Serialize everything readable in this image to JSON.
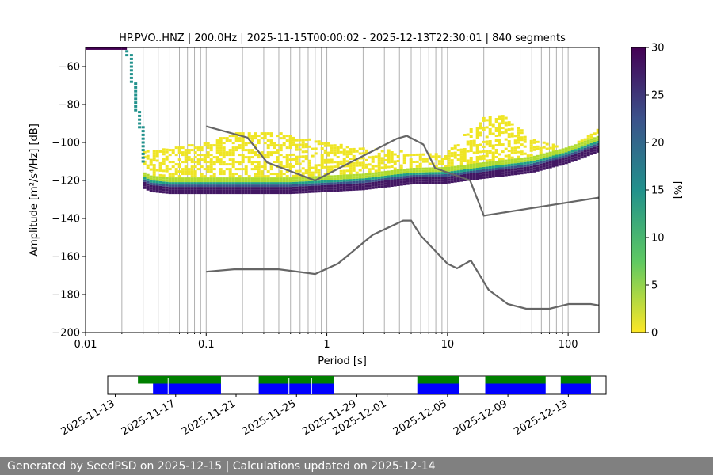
{
  "footer_text": "Generated by SeedPSD on 2025-12-15 | Calculations updated on 2025-12-14",
  "chart_data": [
    {
      "type": "heatmap",
      "title": "HP.PVO..HNZ | 200.0Hz | 2025-11-15T00:00:02 - 2025-12-13T22:30:01 | 840 segments",
      "xlabel": "Period [s]",
      "ylabel": "Amplitude [m²/s⁴/Hz] [dB]",
      "x_scale": "log",
      "xlim": [
        0.01,
        180
      ],
      "ylim": [
        -200,
        -50
      ],
      "x_ticks": [
        0.01,
        0.1,
        1,
        10,
        100
      ],
      "x_tick_labels": [
        "0.01",
        "0.1",
        "1",
        "10",
        "100"
      ],
      "y_ticks": [
        -200,
        -180,
        -160,
        -140,
        -120,
        -100,
        -80,
        -60
      ],
      "grid": "vertical lines at log ticks",
      "colorbar": {
        "label": "[%]",
        "range": [
          0,
          30
        ],
        "ticks": [
          0,
          5,
          10,
          15,
          20,
          25,
          30
        ],
        "colormap": "viridis_r"
      },
      "model_curves": {
        "color": "#666666",
        "high_noise_model": [
          [
            0.1,
            -91.5
          ],
          [
            0.22,
            -97.4
          ],
          [
            0.32,
            -110.5
          ],
          [
            0.8,
            -120
          ],
          [
            3.8,
            -98
          ],
          [
            4.6,
            -96.5
          ],
          [
            6.3,
            -101
          ],
          [
            7.9,
            -113.5
          ],
          [
            15.4,
            -120
          ],
          [
            20,
            -138.5
          ],
          [
            180,
            -129
          ]
        ],
        "low_noise_model": [
          [
            0.1,
            -168
          ],
          [
            0.17,
            -166.7
          ],
          [
            0.4,
            -166.7
          ],
          [
            0.8,
            -169.2
          ],
          [
            1.24,
            -163.7
          ],
          [
            2.4,
            -148.6
          ],
          [
            4.3,
            -141.1
          ],
          [
            5.0,
            -141.1
          ],
          [
            6.0,
            -149
          ],
          [
            10,
            -163.8
          ],
          [
            12,
            -166.2
          ],
          [
            15.6,
            -162.1
          ],
          [
            21.9,
            -177.5
          ],
          [
            31.6,
            -185
          ],
          [
            45,
            -187.5
          ],
          [
            70,
            -187.5
          ],
          [
            101,
            -185
          ],
          [
            154,
            -185
          ],
          [
            180,
            -185.7
          ]
        ]
      },
      "mode_curve": [
        [
          0.03,
          -121
        ],
        [
          0.035,
          -123
        ],
        [
          0.05,
          -124
        ],
        [
          0.1,
          -124
        ],
        [
          0.2,
          -124
        ],
        [
          0.5,
          -124
        ],
        [
          1,
          -123
        ],
        [
          2,
          -122
        ],
        [
          5,
          -119
        ],
        [
          10,
          -118.5
        ],
        [
          20,
          -116
        ],
        [
          50,
          -113
        ],
        [
          100,
          -108
        ],
        [
          180,
          -102
        ]
      ],
      "upper_envelope": [
        [
          0.03,
          -105
        ],
        [
          0.1,
          -100
        ],
        [
          0.2,
          -94
        ],
        [
          0.4,
          -95
        ],
        [
          1,
          -100
        ],
        [
          2,
          -103
        ],
        [
          5,
          -105
        ],
        [
          10,
          -105
        ],
        [
          20,
          -86
        ],
        [
          30,
          -86
        ],
        [
          50,
          -98
        ],
        [
          100,
          -103
        ],
        [
          180,
          -93
        ]
      ],
      "low_period_segment": [
        [
          0.01,
          -50.6
        ],
        [
          0.02,
          -50.6
        ],
        [
          0.022,
          -54
        ],
        [
          0.024,
          -68
        ],
        [
          0.026,
          -83
        ],
        [
          0.028,
          -92
        ],
        [
          0.03,
          -110
        ]
      ]
    },
    {
      "type": "timeline",
      "x_ticks": [
        "2025-11-13",
        "2025-11-17",
        "2025-11-21",
        "2025-11-25",
        "2025-11-29",
        "2025-12-01",
        "2025-12-05",
        "2025-12-09",
        "2025-12-13"
      ],
      "available_data": {
        "color": "#008000",
        "intervals": [
          [
            "2025-11-14T12:00",
            "2025-11-20T00:00"
          ],
          [
            "2025-11-22T12:00",
            "2025-11-27T12:00"
          ],
          [
            "2025-12-03T00:00",
            "2025-12-05T18:00"
          ],
          [
            "2025-12-07T12:00",
            "2025-12-11T12:00"
          ],
          [
            "2025-12-12T12:00",
            "2025-12-14T12:00"
          ]
        ]
      },
      "used_data": {
        "color": "#0000ff",
        "intervals": [
          [
            "2025-11-15T12:00",
            "2025-11-20T00:00"
          ],
          [
            "2025-11-22T12:00",
            "2025-11-27T12:00"
          ],
          [
            "2025-12-03T00:00",
            "2025-12-05T18:00"
          ],
          [
            "2025-12-07T12:00",
            "2025-12-11T12:00"
          ],
          [
            "2025-12-12T12:00",
            "2025-12-14T12:00"
          ]
        ]
      },
      "gaps": [
        "2025-11-16T12:00",
        "2025-11-24T12:00",
        "2025-11-26T00:00"
      ]
    }
  ]
}
